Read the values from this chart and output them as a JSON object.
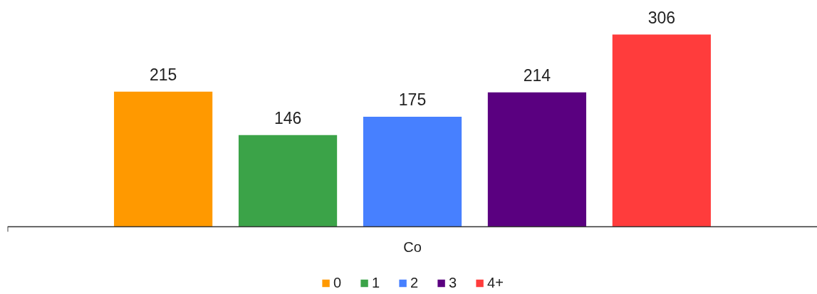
{
  "chart_data": {
    "type": "bar",
    "stacked": true,
    "categories": [
      null,
      null,
      null,
      null,
      null
    ],
    "xlabel": "Co",
    "series": [
      {
        "name": "0",
        "color": "#ff9900",
        "values": [
          215,
          null,
          null,
          null,
          null
        ]
      },
      {
        "name": "1",
        "color": "#3ba348",
        "values": [
          null,
          146,
          null,
          null,
          null
        ]
      },
      {
        "name": "2",
        "color": "#4780ff",
        "values": [
          null,
          null,
          175,
          null,
          null
        ]
      },
      {
        "name": "3",
        "color": "#5a0080",
        "values": [
          null,
          null,
          null,
          214,
          null
        ]
      },
      {
        "name": "4+",
        "color": "#ff3c3c",
        "values": [
          null,
          null,
          null,
          null,
          306
        ]
      }
    ],
    "data_labels": true,
    "legend": "bottom"
  }
}
